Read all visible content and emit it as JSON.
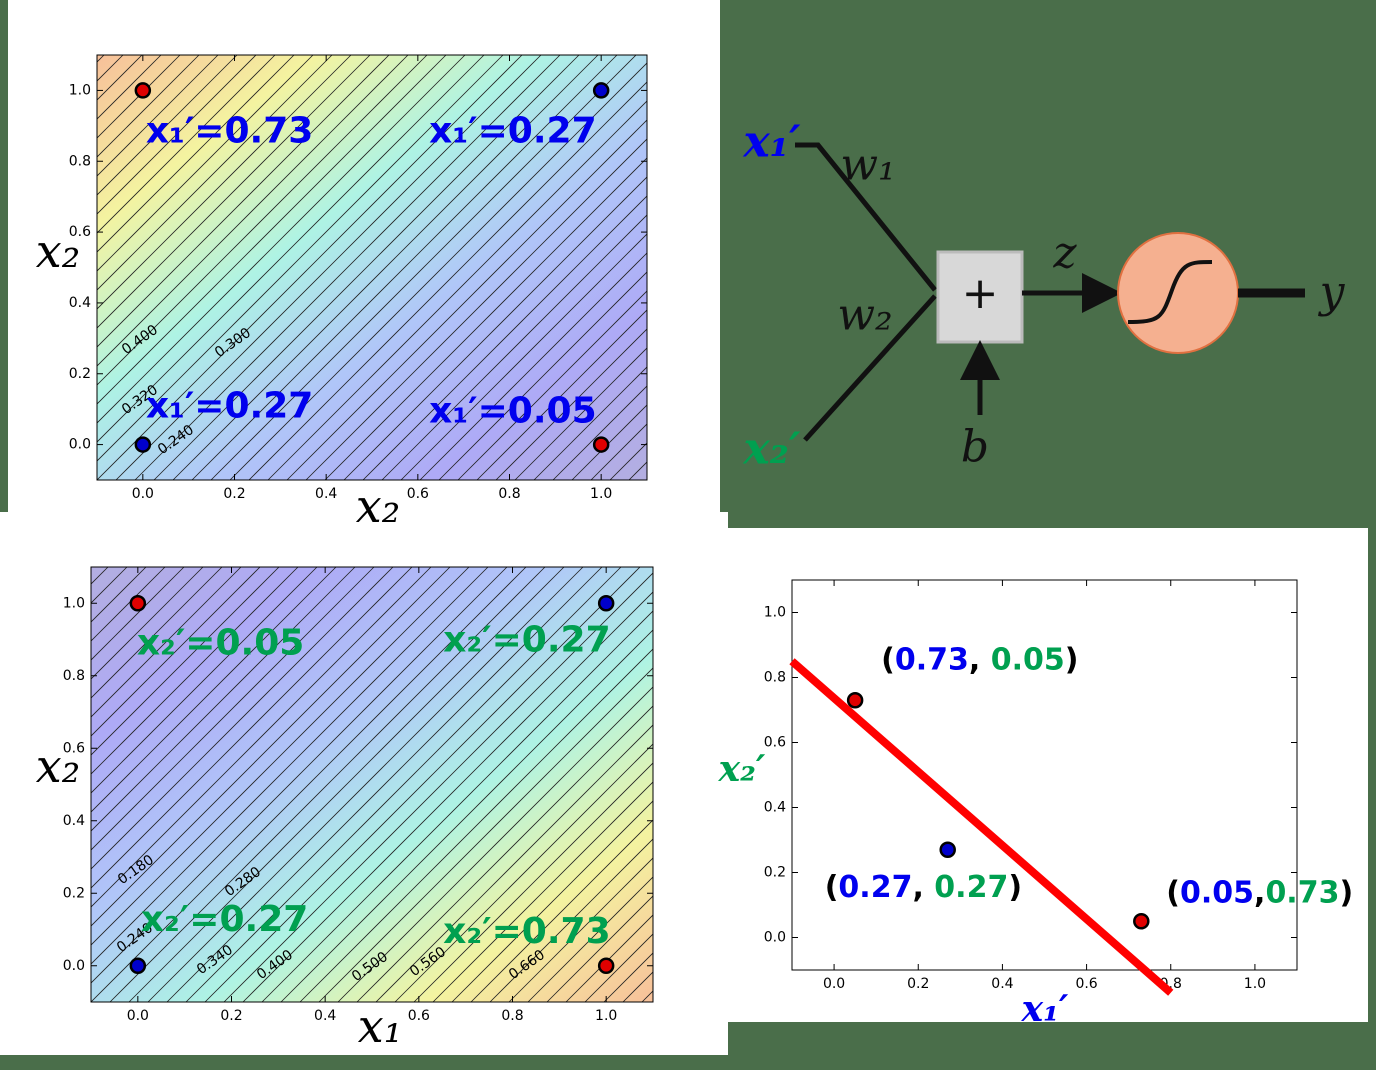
{
  "chart_data": [
    {
      "type": "contour",
      "gradient": [
        "#f7c09a",
        "#f4f3a0",
        "#aef3e4",
        "#b0c6f8",
        "#aeaaf6",
        "#b3aee0"
      ],
      "xlim": [
        -0.1,
        1.1
      ],
      "ylim": [
        -0.1,
        1.1
      ],
      "xticks": [
        {
          "value": 0,
          "label": "0.0"
        },
        {
          "value": 0.2,
          "label": "0.2"
        },
        {
          "value": 0.4,
          "label": "0.4"
        },
        {
          "value": 0.6,
          "label": "0.6"
        },
        {
          "value": 0.8,
          "label": "0.8"
        },
        {
          "value": 1,
          "label": "1.0"
        }
      ],
      "yticks": [
        {
          "value": 0,
          "label": "0.0"
        },
        {
          "value": 0.2,
          "label": "0.2"
        },
        {
          "value": 0.4,
          "label": "0.4"
        },
        {
          "value": 0.6,
          "label": "0.6"
        },
        {
          "value": 0.8,
          "label": "0.8"
        },
        {
          "value": 1,
          "label": "1.0"
        }
      ],
      "x_label": "x₂",
      "y_label": "x₂",
      "x_label_color": "#000000",
      "y_label_color": "#000000",
      "x": [
        0,
        1,
        0,
        1
      ],
      "values": [
        1,
        1,
        0,
        0
      ],
      "colors": [
        "#e00000",
        "#0000cc",
        "#0000cc",
        "#e00000"
      ],
      "annotations": [
        "x₁′=0.73",
        "x₁′=0.27",
        "x₁′=0.27",
        "x₁′=0.05"
      ],
      "annotation_color": "#0000ee",
      "contour_labels": [
        "0.400",
        "0.300",
        "0.320",
        "0.240"
      ]
    },
    {
      "type": "contour",
      "gradient": [
        "#b3aee0",
        "#aeaaf6",
        "#b0c6f8",
        "#aef3e4",
        "#f4f3a0",
        "#f7c09a"
      ],
      "xlim": [
        -0.1,
        1.1
      ],
      "ylim": [
        -0.1,
        1.1
      ],
      "xticks": [
        {
          "value": 0,
          "label": "0.0"
        },
        {
          "value": 0.2,
          "label": "0.2"
        },
        {
          "value": 0.4,
          "label": "0.4"
        },
        {
          "value": 0.6,
          "label": "0.6"
        },
        {
          "value": 0.8,
          "label": "0.8"
        },
        {
          "value": 1,
          "label": "1.0"
        }
      ],
      "yticks": [
        {
          "value": 0,
          "label": "0.0"
        },
        {
          "value": 0.2,
          "label": "0.2"
        },
        {
          "value": 0.4,
          "label": "0.4"
        },
        {
          "value": 0.6,
          "label": "0.6"
        },
        {
          "value": 0.8,
          "label": "0.8"
        },
        {
          "value": 1,
          "label": "1.0"
        }
      ],
      "x_label": "x₁",
      "y_label": "x₂",
      "x_label_color": "#000000",
      "y_label_color": "#000000",
      "x": [
        0,
        1,
        0,
        1
      ],
      "values": [
        1,
        1,
        0,
        0
      ],
      "colors": [
        "#e00000",
        "#0000cc",
        "#0000cc",
        "#e00000"
      ],
      "annotations": [
        "x₂′=0.05",
        "x₂′=0.27",
        "x₂′=0.27",
        "x₂′=0.73"
      ],
      "annotation_color": "#00a050",
      "contour_labels": [
        "0.180",
        "0.280",
        "0.240",
        "0.340",
        "0.400",
        "0.500",
        "0.560",
        "0.660"
      ]
    },
    {
      "type": "scatter",
      "xlim": [
        -0.1,
        1.1
      ],
      "ylim": [
        -0.1,
        1.1
      ],
      "xticks": [
        {
          "value": 0,
          "label": "0.0"
        },
        {
          "value": 0.2,
          "label": "0.2"
        },
        {
          "value": 0.4,
          "label": "0.4"
        },
        {
          "value": 0.6,
          "label": "0.6"
        },
        {
          "value": 0.8,
          "label": "0.8"
        },
        {
          "value": 1,
          "label": "1.0"
        }
      ],
      "yticks": [
        {
          "value": 0,
          "label": "0.0"
        },
        {
          "value": 0.2,
          "label": "0.2"
        },
        {
          "value": 0.4,
          "label": "0.4"
        },
        {
          "value": 0.6,
          "label": "0.6"
        },
        {
          "value": 0.8,
          "label": "0.8"
        },
        {
          "value": 1,
          "label": "1.0"
        }
      ],
      "x_label": "x₁′",
      "y_label": "x₂′",
      "x_label_color": "#0000ee",
      "y_label_color": "#00a050",
      "x": [
        0.05,
        0.27,
        0.73
      ],
      "values": [
        0.73,
        0.27,
        0.05
      ],
      "colors": [
        "#e00000",
        "#0000cc",
        "#e00000"
      ],
      "point_labels": [
        [
          "(",
          "0.73",
          ", ",
          "0.05",
          ")"
        ],
        [
          "(",
          "0.27",
          ", ",
          "0.27",
          ")"
        ],
        [
          "(",
          "0.05",
          ",",
          "0.73",
          ")"
        ]
      ],
      "line": {
        "x": [
          -0.1,
          0.8
        ],
        "y": [
          0.85,
          -0.17
        ],
        "color": "#ff0000"
      }
    }
  ],
  "diagram": {
    "inputs": [
      "x₁′",
      "x₂′"
    ],
    "weights": [
      "w₁",
      "w₂"
    ],
    "sum": "+",
    "z": "z",
    "bias": "b",
    "output": "y"
  }
}
